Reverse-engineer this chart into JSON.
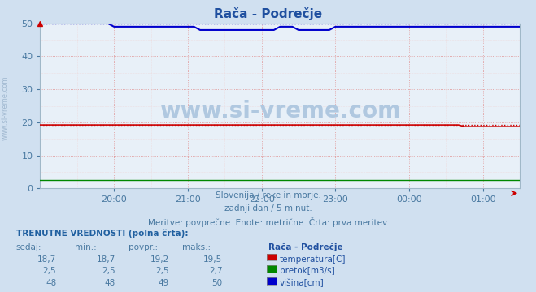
{
  "title": "Rača - Podrečje",
  "bg_color": "#d0e0f0",
  "plot_bg_color": "#e8f0f8",
  "xlabel_color": "#4878a0",
  "tick_color": "#4878a0",
  "title_color": "#2050a0",
  "ylim": [
    0,
    50
  ],
  "yticks": [
    0,
    10,
    20,
    30,
    40,
    50
  ],
  "xtick_labels": [
    "20:00",
    "21:00",
    "22:00",
    "23:00",
    "00:00",
    "01:00"
  ],
  "xtick_positions": [
    60,
    120,
    180,
    240,
    300,
    360
  ],
  "xlim": [
    0,
    390
  ],
  "subtitle_lines": [
    "Slovenija / reke in morje.",
    "zadnji dan / 5 minut.",
    "Meritve: povprečne  Enote: metrične  Črta: prva meritev"
  ],
  "subtitle_color": "#4878a0",
  "watermark": "www.si-vreme.com",
  "watermark_color": "#b0c8e0",
  "legend_title": "Rača - Podrečje",
  "legend_items": [
    {
      "label": "temperatura[C]",
      "color": "#cc0000"
    },
    {
      "label": "pretok[m3/s]",
      "color": "#008800"
    },
    {
      "label": "višina[cm]",
      "color": "#0000cc"
    }
  ],
  "table_header": "TRENUTNE VREDNOSTI (polna črta):",
  "table_cols": [
    "sedaj:",
    "min.:",
    "povpr.:",
    "maks.:"
  ],
  "table_rows": [
    [
      "18,7",
      "18,7",
      "19,2",
      "19,5"
    ],
    [
      "2,5",
      "2,5",
      "2,5",
      "2,7"
    ],
    [
      "48",
      "48",
      "49",
      "50"
    ]
  ],
  "table_colors": [
    "#cc0000",
    "#008800",
    "#0000cc"
  ],
  "dotted_temp": 19.2,
  "dotted_height": 50.0,
  "solid_temp_color": "#cc0000",
  "solid_height_color": "#0000cc",
  "solid_flow_color": "#008800",
  "grid_red": "#e09090",
  "grid_pink": "#f0d0d0",
  "spine_color": "#a0b8c8",
  "arrow_color": "#cc0000",
  "side_text": "www.si-vreme.com",
  "side_text_color": "#a0b8d0"
}
